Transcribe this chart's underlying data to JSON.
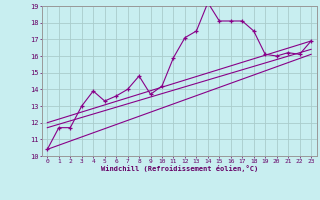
{
  "xlabel": "Windchill (Refroidissement éolien,°C)",
  "bg_color": "#c8eef0",
  "grid_color": "#aacccc",
  "line_color": "#880088",
  "xlim": [
    -0.5,
    23.5
  ],
  "ylim": [
    10,
    19
  ],
  "xticks": [
    0,
    1,
    2,
    3,
    4,
    5,
    6,
    7,
    8,
    9,
    10,
    11,
    12,
    13,
    14,
    15,
    16,
    17,
    18,
    19,
    20,
    21,
    22,
    23
  ],
  "yticks": [
    10,
    11,
    12,
    13,
    14,
    15,
    16,
    17,
    18,
    19
  ],
  "line1_x": [
    0,
    1,
    2,
    3,
    4,
    5,
    6,
    7,
    8,
    9,
    10,
    11,
    12,
    13,
    14,
    15,
    16,
    17,
    18,
    19,
    20,
    21,
    22,
    23
  ],
  "line1_y": [
    10.4,
    11.7,
    11.7,
    13.0,
    13.9,
    13.3,
    13.6,
    14.0,
    14.8,
    13.7,
    14.2,
    15.9,
    17.1,
    17.5,
    19.2,
    18.1,
    18.1,
    18.1,
    17.5,
    16.1,
    16.0,
    16.2,
    16.1,
    16.9
  ],
  "line2_x": [
    0,
    23
  ],
  "line2_y": [
    10.4,
    16.1
  ],
  "line3_x": [
    0,
    23
  ],
  "line3_y": [
    11.7,
    16.4
  ],
  "line4_x": [
    0,
    23
  ],
  "line4_y": [
    12.0,
    16.9
  ]
}
